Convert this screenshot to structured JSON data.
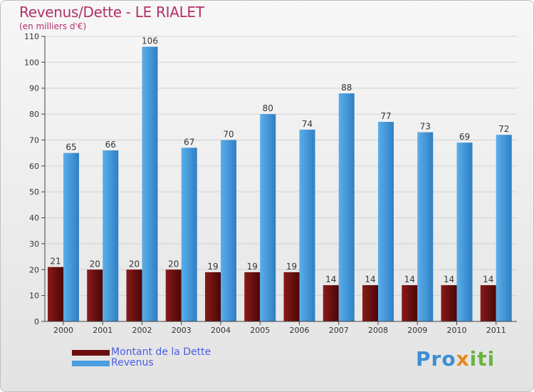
{
  "chart_data": {
    "type": "bar",
    "title": "Revenus/Dette - LE RIALET",
    "subtitle": "(en milliers d'€)",
    "categories": [
      "2000",
      "2001",
      "2002",
      "2003",
      "2004",
      "2005",
      "2006",
      "2007",
      "2008",
      "2009",
      "2010",
      "2011"
    ],
    "series": [
      {
        "name": "Montant de la Dette",
        "color": "#6b0e0e",
        "values": [
          21,
          20,
          20,
          20,
          19,
          19,
          19,
          14,
          14,
          14,
          14,
          14
        ]
      },
      {
        "name": "Revenus",
        "color": "#4a9ee0",
        "values": [
          65,
          66,
          106,
          67,
          70,
          80,
          74,
          88,
          77,
          73,
          69,
          72
        ]
      }
    ],
    "ylim": [
      0,
      110
    ],
    "yticks": [
      0,
      10,
      20,
      30,
      40,
      50,
      60,
      70,
      80,
      90,
      100,
      110
    ],
    "xlabel": "",
    "ylabel": "",
    "grid": true
  },
  "logo": {
    "text": "Proxiti"
  }
}
